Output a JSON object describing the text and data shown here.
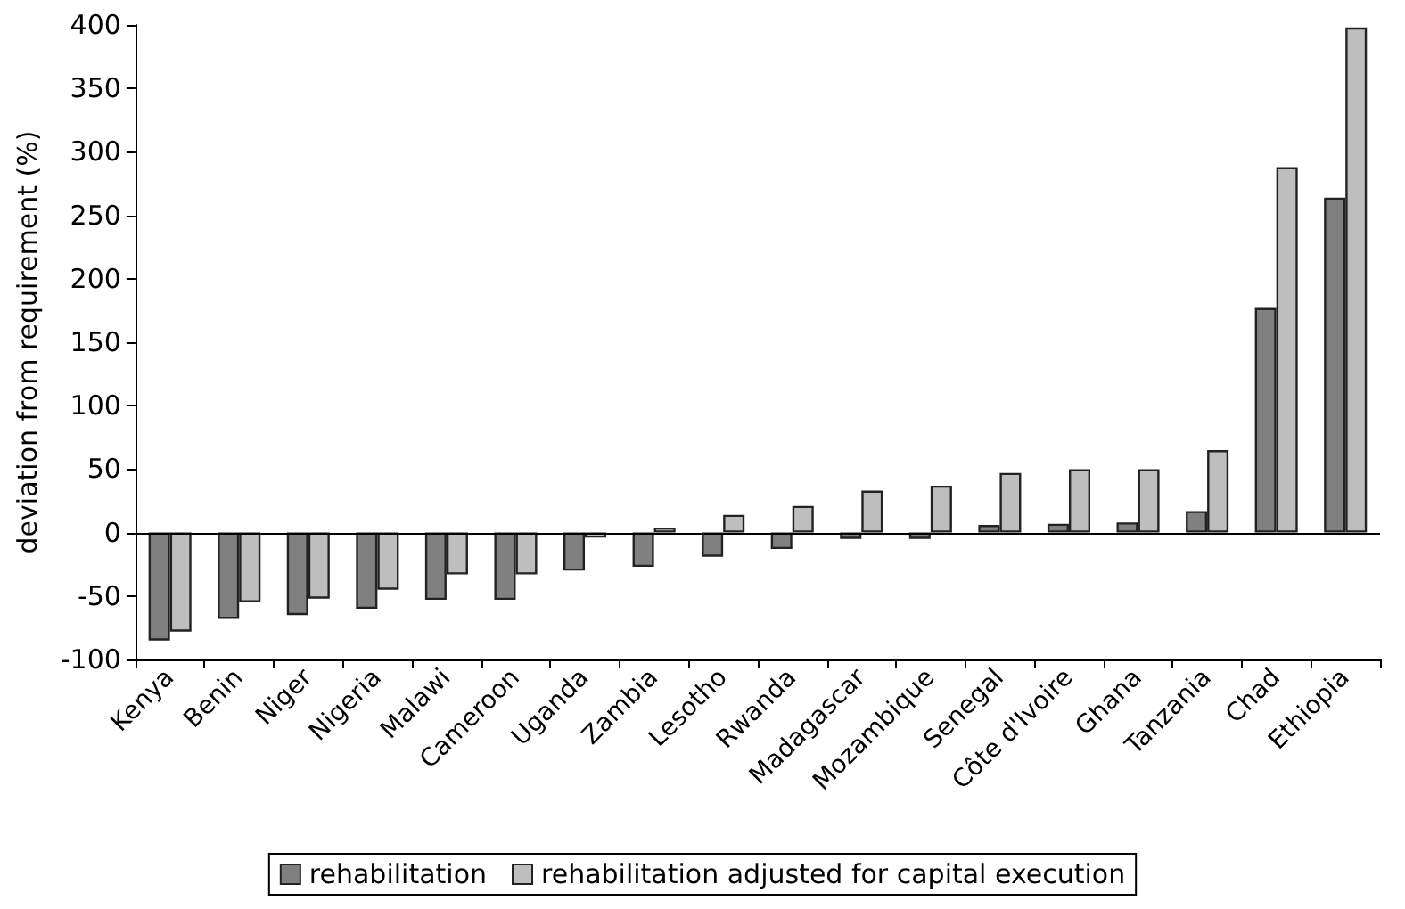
{
  "chart_data": {
    "type": "bar",
    "ylabel": "deviation from requirement (%)",
    "categories": [
      "Kenya",
      "Benin",
      "Niger",
      "Nigeria",
      "Malawi",
      "Cameroon",
      "Uganda",
      "Zambia",
      "Lesotho",
      "Rwanda",
      "Madagascar",
      "Mozambique",
      "Senegal",
      "Côte d'Ivoire",
      "Ghana",
      "Tanzania",
      "Chad",
      "Ethiopia"
    ],
    "series": [
      {
        "name": "rehabilitation",
        "color": "#808080",
        "values": [
          -85,
          -68,
          -65,
          -60,
          -53,
          -53,
          -30,
          -27,
          -19,
          -13,
          -5,
          -5,
          6,
          7,
          8,
          17,
          177,
          264
        ]
      },
      {
        "name": "rehabilitation adjusted for capital execution",
        "color": "#bebebe",
        "values": [
          -78,
          -55,
          -52,
          -45,
          -33,
          -33,
          -4,
          4,
          14,
          21,
          33,
          37,
          47,
          50,
          50,
          65,
          288,
          398
        ]
      }
    ],
    "ylim": [
      -100,
      400
    ],
    "yticks": [
      -100,
      -50,
      0,
      50,
      100,
      150,
      200,
      250,
      300,
      350,
      400
    ],
    "grid": false,
    "legend": "bottom",
    "ref_lines": [
      {
        "axis": "y",
        "value": 0
      }
    ]
  }
}
